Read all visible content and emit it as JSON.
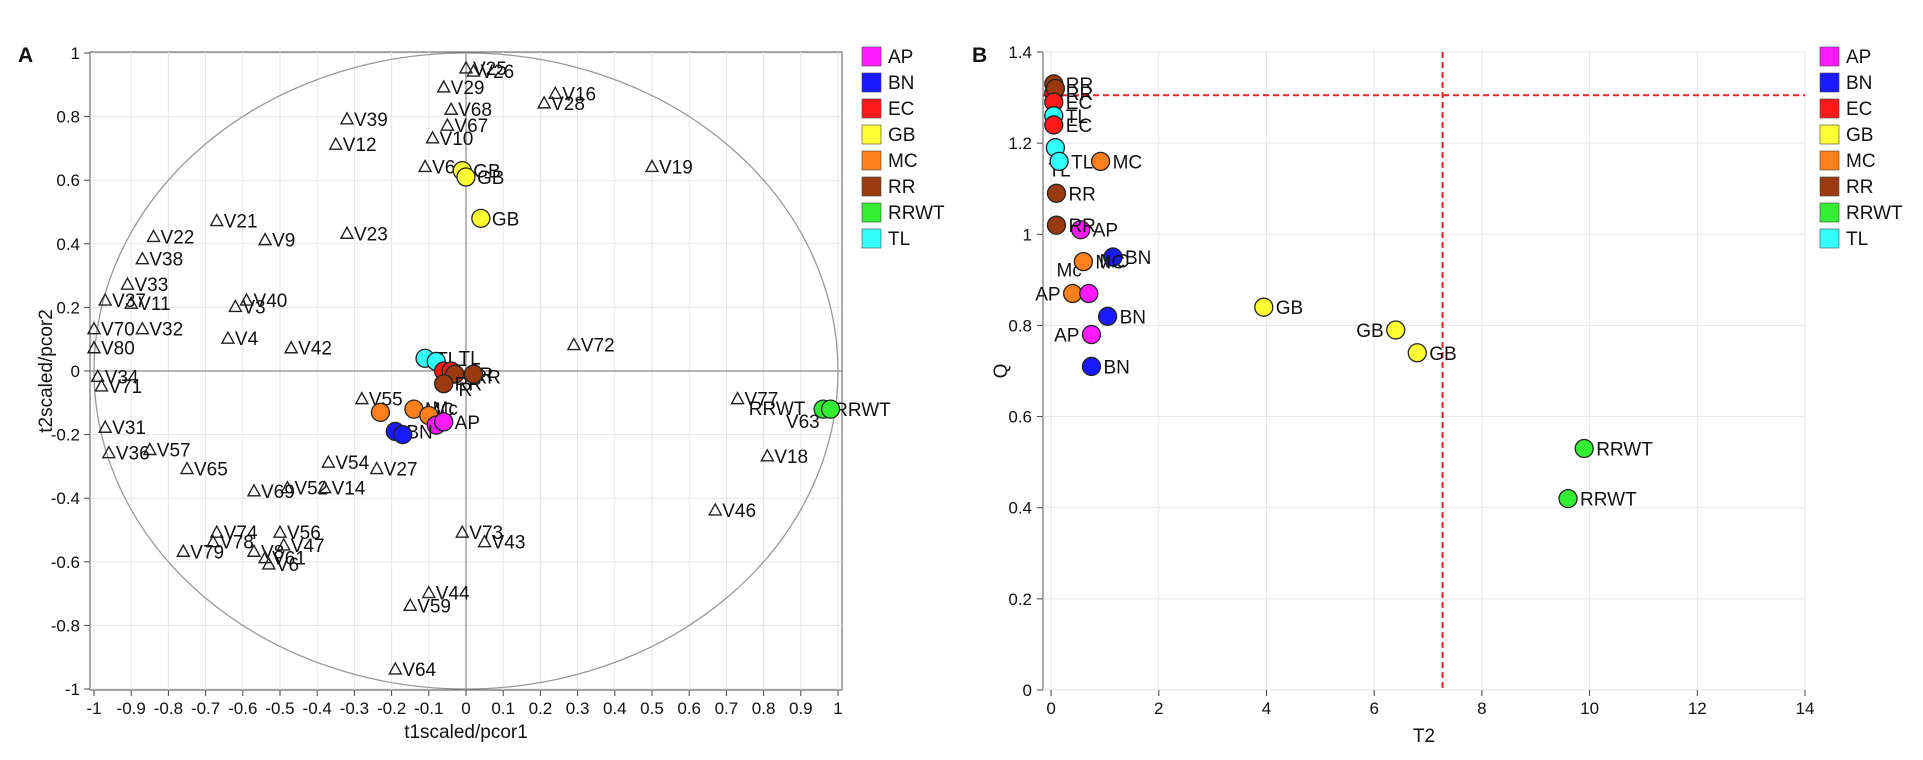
{
  "legend": [
    {
      "label": "AP",
      "color": "#ff1aff"
    },
    {
      "label": "BN",
      "color": "#1a1aff"
    },
    {
      "label": "EC",
      "color": "#ff1a1a"
    },
    {
      "label": "GB",
      "color": "#ffff33"
    },
    {
      "label": "MC",
      "color": "#ff7f1a"
    },
    {
      "label": "RR",
      "color": "#9b3a10"
    },
    {
      "label": "RRWT",
      "color": "#33ee33"
    },
    {
      "label": "TL",
      "color": "#33ffff"
    }
  ],
  "chart_data": [
    {
      "panel": "A",
      "type": "scatter",
      "xlabel": "t1scaled/pcor1",
      "ylabel": "t2scaled/pcor2",
      "xlim": [
        -1,
        1
      ],
      "ylim": [
        -1,
        1
      ],
      "xticks": [
        "-1",
        "-0.9",
        "-0.8",
        "-0.7",
        "-0.6",
        "-0.5",
        "-0.4",
        "-0.3",
        "-0.2",
        "-0.1",
        "0",
        "0.1",
        "0.2",
        "0.3",
        "0.4",
        "0.5",
        "0.6",
        "0.7",
        "0.8",
        "0.9",
        "1"
      ],
      "yticks": [
        "1",
        "0.8",
        "0.6",
        "0.4",
        "0.2",
        "0",
        "-0.2",
        "-0.4",
        "-0.6",
        "-0.8",
        "-1"
      ],
      "unit_circle": true,
      "variables": [
        {
          "label": "V25",
          "x": 0.0,
          "y": 0.95
        },
        {
          "label": "V26",
          "x": 0.02,
          "y": 0.94
        },
        {
          "label": "V16",
          "x": 0.24,
          "y": 0.87
        },
        {
          "label": "V28",
          "x": 0.21,
          "y": 0.84
        },
        {
          "label": "V29",
          "x": -0.06,
          "y": 0.89
        },
        {
          "label": "V68",
          "x": -0.04,
          "y": 0.82
        },
        {
          "label": "V67",
          "x": -0.05,
          "y": 0.77
        },
        {
          "label": "V10",
          "x": -0.09,
          "y": 0.73
        },
        {
          "label": "V39",
          "x": -0.32,
          "y": 0.79
        },
        {
          "label": "V12",
          "x": -0.35,
          "y": 0.71
        },
        {
          "label": "V19",
          "x": 0.5,
          "y": 0.64
        },
        {
          "label": "V6",
          "x": -0.11,
          "y": 0.64
        },
        {
          "label": "V21",
          "x": -0.67,
          "y": 0.47
        },
        {
          "label": "V22",
          "x": -0.84,
          "y": 0.42
        },
        {
          "label": "V9",
          "x": -0.54,
          "y": 0.41
        },
        {
          "label": "V23",
          "x": -0.32,
          "y": 0.43
        },
        {
          "label": "V38",
          "x": -0.87,
          "y": 0.35
        },
        {
          "label": "V33",
          "x": -0.91,
          "y": 0.27
        },
        {
          "label": "V40",
          "x": -0.59,
          "y": 0.22
        },
        {
          "label": "V3",
          "x": -0.62,
          "y": 0.2
        },
        {
          "label": "V11",
          "x": -0.9,
          "y": 0.21
        },
        {
          "label": "V37",
          "x": -0.97,
          "y": 0.22
        },
        {
          "label": "V70",
          "x": -1.0,
          "y": 0.13
        },
        {
          "label": "V32",
          "x": -0.87,
          "y": 0.13
        },
        {
          "label": "V80",
          "x": -1.0,
          "y": 0.07
        },
        {
          "label": "V4",
          "x": -0.64,
          "y": 0.1
        },
        {
          "label": "V42",
          "x": -0.47,
          "y": 0.07
        },
        {
          "label": "V72",
          "x": 0.29,
          "y": 0.08
        },
        {
          "label": "V34",
          "x": -0.99,
          "y": -0.02
        },
        {
          "label": "V71",
          "x": -0.98,
          "y": -0.05
        },
        {
          "label": "V77",
          "x": 0.73,
          "y": -0.09
        },
        {
          "label": "V55",
          "x": -0.28,
          "y": -0.09
        },
        {
          "label": "V31",
          "x": -0.97,
          "y": -0.18
        },
        {
          "label": "V57",
          "x": -0.85,
          "y": -0.25
        },
        {
          "label": "V36",
          "x": -0.96,
          "y": -0.26
        },
        {
          "label": "V65",
          "x": -0.75,
          "y": -0.31
        },
        {
          "label": "V18",
          "x": 0.81,
          "y": -0.27
        },
        {
          "label": "V54",
          "x": -0.37,
          "y": -0.29
        },
        {
          "label": "V27",
          "x": -0.24,
          "y": -0.31
        },
        {
          "label": "V52",
          "x": -0.48,
          "y": -0.37
        },
        {
          "label": "V69",
          "x": -0.57,
          "y": -0.38
        },
        {
          "label": "V14",
          "x": -0.38,
          "y": -0.37
        },
        {
          "label": "V46",
          "x": 0.67,
          "y": -0.44
        },
        {
          "label": "V73",
          "x": -0.01,
          "y": -0.51
        },
        {
          "label": "V43",
          "x": 0.05,
          "y": -0.54
        },
        {
          "label": "V74",
          "x": -0.67,
          "y": -0.51
        },
        {
          "label": "V56",
          "x": -0.5,
          "y": -0.51
        },
        {
          "label": "V78",
          "x": -0.68,
          "y": -0.54
        },
        {
          "label": "V47",
          "x": -0.49,
          "y": -0.55
        },
        {
          "label": "V79",
          "x": -0.76,
          "y": -0.57
        },
        {
          "label": "V8",
          "x": -0.57,
          "y": -0.57
        },
        {
          "label": "V61",
          "x": -0.54,
          "y": -0.59
        },
        {
          "label": "V6",
          "x": -0.53,
          "y": -0.61
        },
        {
          "label": "V44",
          "x": -0.1,
          "y": -0.7
        },
        {
          "label": "V59",
          "x": -0.15,
          "y": -0.74
        },
        {
          "label": "V64",
          "x": -0.19,
          "y": -0.94
        }
      ],
      "observations": [
        {
          "group": "GB",
          "label": "GB",
          "x": -0.01,
          "y": 0.63
        },
        {
          "group": "GB",
          "label": "GB",
          "x": 0.0,
          "y": 0.61
        },
        {
          "group": "GB",
          "label": "GB",
          "x": 0.04,
          "y": 0.48
        },
        {
          "group": "TL",
          "label": "TL",
          "x": -0.11,
          "y": 0.04
        },
        {
          "group": "TL",
          "label": "",
          "x": -0.08,
          "y": 0.03
        },
        {
          "group": "EC",
          "label": "EC",
          "x": -0.06,
          "y": 0.0
        },
        {
          "group": "EC",
          "label": "",
          "x": -0.04,
          "y": 0.0
        },
        {
          "group": "RR",
          "label": "RR",
          "x": -0.03,
          "y": -0.01
        },
        {
          "group": "RR",
          "label": "RR",
          "x": -0.06,
          "y": -0.04
        },
        {
          "group": "RR",
          "label": "",
          "x": 0.02,
          "y": -0.01
        },
        {
          "group": "MC",
          "label": "MC",
          "x": -0.14,
          "y": -0.12
        },
        {
          "group": "MC",
          "label": "",
          "x": -0.23,
          "y": -0.13
        },
        {
          "group": "MC",
          "label": "",
          "x": -0.1,
          "y": -0.14
        },
        {
          "group": "AP",
          "label": "",
          "x": -0.08,
          "y": -0.17
        },
        {
          "group": "AP",
          "label": "AP",
          "x": -0.06,
          "y": -0.16
        },
        {
          "group": "BN",
          "label": "BN",
          "x": -0.19,
          "y": -0.19
        },
        {
          "group": "BN",
          "label": "",
          "x": -0.17,
          "y": -0.2
        },
        {
          "group": "RRWT",
          "label": "RRWT",
          "x": 0.96,
          "y": -0.12
        },
        {
          "group": "RRWT",
          "label": "",
          "x": 0.98,
          "y": -0.12
        }
      ],
      "cluster_texts": [
        {
          "text": "RR",
          "x": 0.02,
          "y": -0.02
        },
        {
          "text": "R",
          "x": -0.02,
          "y": -0.06
        },
        {
          "text": "TL",
          "x": -0.02,
          "y": 0.04
        },
        {
          "text": "RRWT",
          "x": 0.76,
          "y": -0.12
        },
        {
          "text": "V63",
          "x": 0.86,
          "y": -0.16
        },
        {
          "text": "Mc",
          "x": -0.09,
          "y": -0.12
        }
      ]
    },
    {
      "panel": "B",
      "type": "scatter",
      "xlabel": "T2",
      "ylabel": "Q",
      "xlim": [
        0,
        14
      ],
      "ylim": [
        0,
        1.4
      ],
      "xticks": [
        "0",
        "2",
        "4",
        "6",
        "8",
        "10",
        "12",
        "14"
      ],
      "yticks": [
        "1.4",
        "1.2",
        "1",
        "0.8",
        "0.6",
        "0.4",
        "0.2",
        "0"
      ],
      "threshold_x": 7.27,
      "threshold_y": 1.305,
      "points": [
        {
          "group": "RR",
          "label": "RR",
          "x": 0.05,
          "y": 1.33
        },
        {
          "group": "EC",
          "label": "RR",
          "x": 0.05,
          "y": 1.31
        },
        {
          "group": "RR",
          "label": "",
          "x": 0.08,
          "y": 1.32
        },
        {
          "group": "EC",
          "label": "EC",
          "x": 0.05,
          "y": 1.29
        },
        {
          "group": "TL",
          "label": "TL",
          "x": 0.05,
          "y": 1.26
        },
        {
          "group": "EC",
          "label": "EC",
          "x": 0.05,
          "y": 1.24
        },
        {
          "group": "TL",
          "label": "",
          "x": 0.08,
          "y": 1.19
        },
        {
          "group": "TL",
          "label": "TL",
          "x": 0.15,
          "y": 1.16
        },
        {
          "group": "MC",
          "label": "MC",
          "x": 0.92,
          "y": 1.16
        },
        {
          "group": "RR",
          "label": "RR",
          "x": 0.1,
          "y": 1.09
        },
        {
          "group": "RR",
          "label": "RR",
          "x": 0.1,
          "y": 1.02
        },
        {
          "group": "AP",
          "label": "AP",
          "x": 0.55,
          "y": 1.01
        },
        {
          "group": "BN",
          "label": "BN",
          "x": 1.15,
          "y": 0.95
        },
        {
          "group": "MC",
          "label": "MC",
          "x": 0.6,
          "y": 0.94
        },
        {
          "group": "MC",
          "label": "AP",
          "x": 0.4,
          "y": 0.87
        },
        {
          "group": "AP",
          "label": "",
          "x": 0.7,
          "y": 0.87
        },
        {
          "group": "GB",
          "label": "GB",
          "x": 3.95,
          "y": 0.84
        },
        {
          "group": "BN",
          "label": "BN",
          "x": 1.05,
          "y": 0.82
        },
        {
          "group": "AP",
          "label": "AP",
          "x": 0.75,
          "y": 0.78
        },
        {
          "group": "GB",
          "label": "GB",
          "x": 6.4,
          "y": 0.79
        },
        {
          "group": "GB",
          "label": "GB",
          "x": 6.8,
          "y": 0.74
        },
        {
          "group": "BN",
          "label": "BN",
          "x": 0.75,
          "y": 0.71
        },
        {
          "group": "RRWT",
          "label": "RRWT",
          "x": 9.9,
          "y": 0.53
        },
        {
          "group": "RRWT",
          "label": "RRWT",
          "x": 9.6,
          "y": 0.42
        }
      ],
      "extra_texts": [
        {
          "text": "Mc",
          "x": 0.1,
          "y": 0.92
        },
        {
          "text": "MC",
          "x": 0.9,
          "y": 0.94
        },
        {
          "text": "TL",
          "x": -0.05,
          "y": 1.14
        }
      ]
    }
  ]
}
